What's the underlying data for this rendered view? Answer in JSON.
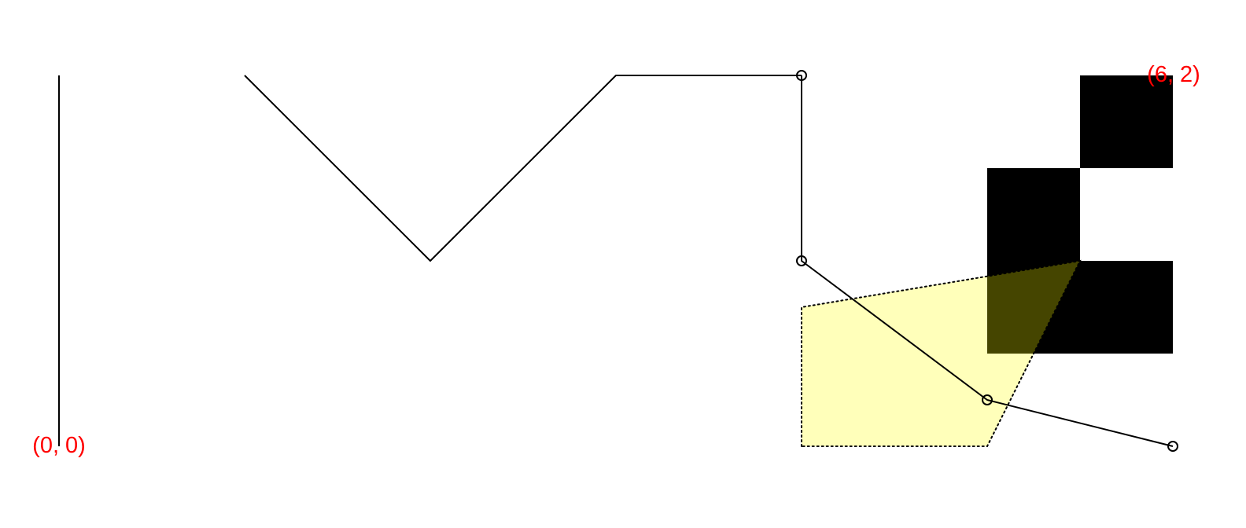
{
  "labels": {
    "origin": "(0, 0)",
    "corner": "(6, 2)"
  },
  "colors": {
    "stroke": "#000000",
    "label": "#ff0000",
    "squares": "#000000",
    "polygon_fill": "#ffff00",
    "polygon_stroke": "#000000"
  },
  "shapes": {
    "vertical_segment": {
      "points": [
        [
          0,
          0
        ],
        [
          0,
          2
        ]
      ]
    },
    "zigzag_line": {
      "points": [
        [
          1,
          2
        ],
        [
          2,
          1
        ],
        [
          3,
          2
        ],
        [
          4,
          2
        ]
      ]
    },
    "marked_path": {
      "points": [
        [
          4,
          2
        ],
        [
          4,
          1
        ],
        [
          5,
          0.25
        ],
        [
          6,
          0
        ]
      ],
      "markers": "open-circle"
    },
    "checker_squares": [
      {
        "x": [
          5.5,
          6
        ],
        "y": [
          1.5,
          2
        ]
      },
      {
        "x": [
          5,
          5.5
        ],
        "y": [
          1,
          1.5
        ]
      },
      {
        "x": [
          5,
          6
        ],
        "y": [
          0.5,
          1
        ]
      }
    ],
    "translucent_polygon": {
      "points": [
        [
          4,
          0
        ],
        [
          4,
          0.75
        ],
        [
          5.5,
          1
        ],
        [
          5,
          0
        ]
      ],
      "fill_opacity": 0.27,
      "stroke_style": "dotted"
    }
  }
}
